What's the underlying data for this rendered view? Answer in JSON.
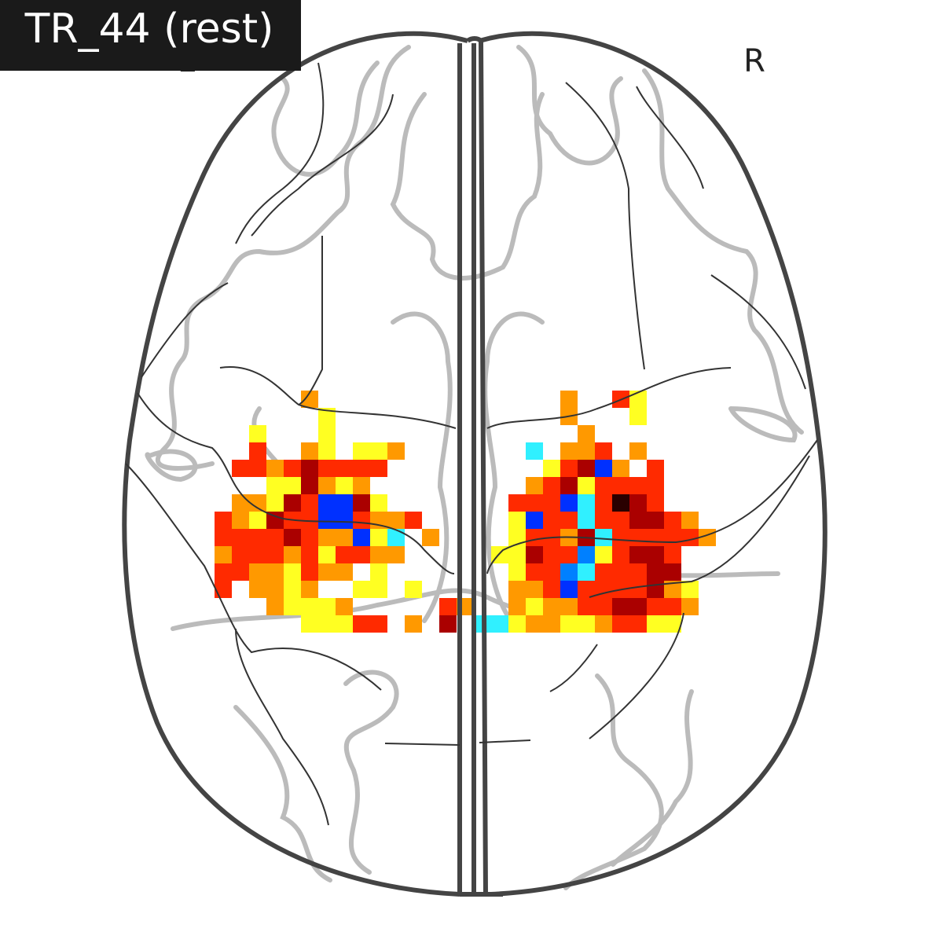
{
  "title": "TR_44 (rest)",
  "labels": {
    "left": "L",
    "right": "R"
  }
}
